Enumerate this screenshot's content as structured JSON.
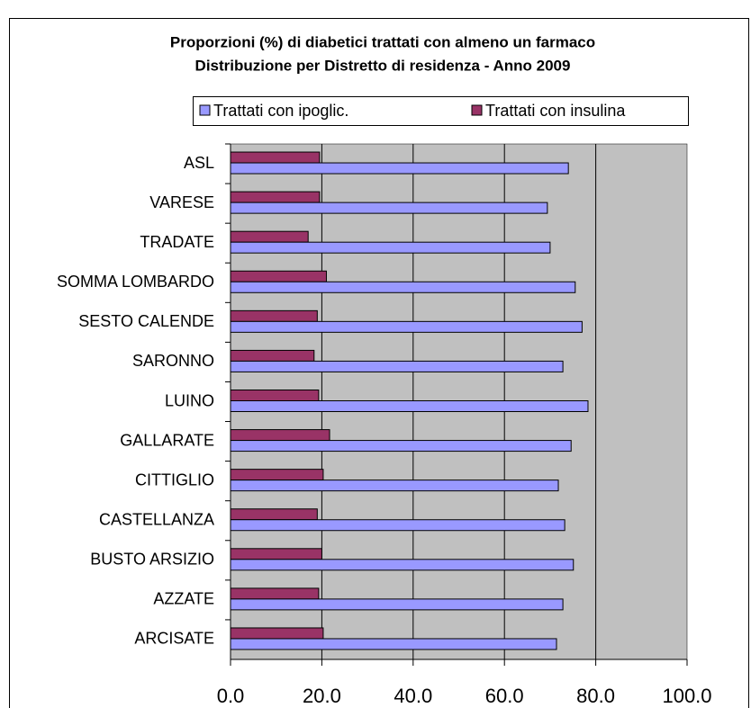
{
  "chart_data": {
    "type": "hbar",
    "title": "Proporzioni (%) di diabetici trattati con almeno un farmaco",
    "subtitle": "Distribuzione per Distretto di residenza - Anno 2009",
    "categories": [
      "ASL",
      "VARESE",
      "TRADATE",
      "SOMMA LOMBARDO",
      "SESTO CALENDE",
      "SARONNO",
      "LUINO",
      "GALLARATE",
      "CITTIGLIO",
      "CASTELLANZA",
      "BUSTO ARSIZIO",
      "AZZATE",
      "ARCISATE"
    ],
    "series": [
      {
        "name": "Trattati con ipoglic.",
        "color": "#9999ff",
        "values": [
          74.0,
          69.4,
          70.0,
          75.5,
          77.0,
          72.8,
          78.3,
          74.6,
          71.8,
          73.2,
          75.1,
          72.8,
          71.4
        ]
      },
      {
        "name": "Trattati con insulina",
        "color": "#993366",
        "values": [
          19.5,
          19.5,
          17.0,
          21.0,
          19.0,
          18.3,
          19.3,
          21.7,
          20.3,
          19.0,
          20.0,
          19.3,
          20.3
        ]
      }
    ],
    "xlim": [
      0,
      100
    ],
    "xticks": [
      {
        "value": 0,
        "label": "0.0"
      },
      {
        "value": 20,
        "label": "20.0"
      },
      {
        "value": 40,
        "label": "40.0"
      },
      {
        "value": 60,
        "label": "60.0"
      },
      {
        "value": 80,
        "label": "80.0"
      },
      {
        "value": 100,
        "label": "100.0"
      }
    ],
    "grid": true,
    "legend": "top",
    "plot_background": "#c0c0c0"
  }
}
